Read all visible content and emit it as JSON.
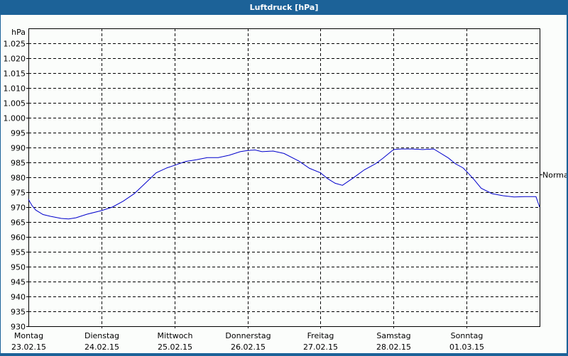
{
  "window": {
    "title": "Luftdruck [hPa]"
  },
  "chart_data": {
    "type": "line",
    "title": "Luftdruck [hPa]",
    "xlabel": "",
    "ylabel": "hPa",
    "ylim": [
      930,
      1030
    ],
    "y_ticks": [
      "930",
      "935",
      "940",
      "945",
      "950",
      "955",
      "960",
      "965",
      "970",
      "975",
      "980",
      "985",
      "990",
      "995",
      "1.000",
      "1.005",
      "1.010",
      "1.015",
      "1.020",
      "1.025"
    ],
    "y_tick_values": [
      930,
      935,
      940,
      945,
      950,
      955,
      960,
      965,
      970,
      975,
      980,
      985,
      990,
      995,
      1000,
      1005,
      1010,
      1015,
      1020,
      1025
    ],
    "x_ticks": [
      {
        "day": "Montag",
        "date": "23.02.15"
      },
      {
        "day": "Dienstag",
        "date": "24.02.15"
      },
      {
        "day": "Mittwoch",
        "date": "25.02.15"
      },
      {
        "day": "Donnerstag",
        "date": "26.02.15"
      },
      {
        "day": "Freitag",
        "date": "27.02.15"
      },
      {
        "day": "Samstag",
        "date": "28.02.15"
      },
      {
        "day": "Sonntag",
        "date": "01.03.15"
      }
    ],
    "grid": true,
    "reference_line": {
      "label": "Normal",
      "value": 981
    },
    "line_color": "#0000cc",
    "series": [
      {
        "name": "Luftdruck",
        "x_days": [
          0,
          0.05,
          0.1,
          0.2,
          0.3,
          0.45,
          0.55,
          0.65,
          0.8,
          1.0,
          1.15,
          1.3,
          1.45,
          1.6,
          1.75,
          1.9,
          2.0,
          2.15,
          2.3,
          2.45,
          2.6,
          2.75,
          2.9,
          3.0,
          3.1,
          3.2,
          3.35,
          3.5,
          3.7,
          3.85,
          4.0,
          4.1,
          4.2,
          4.3,
          4.45,
          4.6,
          4.75,
          4.85,
          5.0,
          5.1,
          5.25,
          5.4,
          5.55,
          5.75,
          5.85,
          5.95,
          6.0,
          6.1,
          6.2,
          6.35,
          6.5,
          6.65,
          6.8,
          6.95,
          7.0
        ],
        "values": [
          972.6,
          970.5,
          969.0,
          967.5,
          966.9,
          966.2,
          966.0,
          966.4,
          967.6,
          968.8,
          970.0,
          972.0,
          974.5,
          978.0,
          981.5,
          983.2,
          984.0,
          985.3,
          985.9,
          986.6,
          986.6,
          987.4,
          988.6,
          989.0,
          989.2,
          988.6,
          988.8,
          988.0,
          985.5,
          983.0,
          981.5,
          979.5,
          978.0,
          977.3,
          979.8,
          982.5,
          984.5,
          986.3,
          989.3,
          989.5,
          989.5,
          989.3,
          989.5,
          986.5,
          984.5,
          983.2,
          982.0,
          979.3,
          976.3,
          974.5,
          973.8,
          973.4,
          973.5,
          973.5,
          970.0
        ]
      }
    ]
  }
}
